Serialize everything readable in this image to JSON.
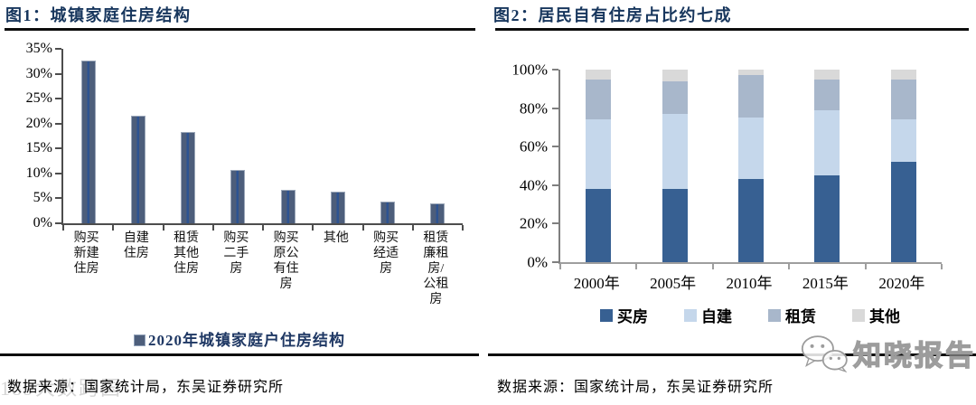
{
  "figure1": {
    "title": "图1：城镇家庭住房结构",
    "legend": "2020年城镇家庭户住房结构",
    "source": "数据来源：国家统计局，东吴证券研究所",
    "watermark": "189大数跨国"
  },
  "figure2": {
    "title": "图2：居民自有住房占比约七成",
    "source": "数据来源：国家统计局，东吴证券研究所",
    "watermark": "知晓报告"
  },
  "chart_data": [
    {
      "type": "bar",
      "title": "图1：城镇家庭住房结构",
      "categories": [
        "购买新建住房",
        "自建住房",
        "租赁其他住房",
        "购买二手房",
        "购买原公有住房",
        "其他",
        "购买经适房",
        "租赁廉租房/公租房"
      ],
      "values": [
        32.6,
        21.6,
        18.3,
        10.7,
        6.7,
        6.4,
        4.4,
        4.0
      ],
      "ylim": [
        0,
        35
      ],
      "yticks": [
        "0%",
        "5%",
        "10%",
        "15%",
        "20%",
        "25%",
        "30%",
        "35%"
      ],
      "legend": "2020年城镇家庭户住房结构",
      "legend_position": "bottom",
      "grid": false,
      "colors": {
        "bar": "#4d5e7b",
        "stripe": "#2d5391",
        "border": "#9aa6b8"
      }
    },
    {
      "type": "bar",
      "stacked": true,
      "title": "图2：居民自有住房占比约七成",
      "categories": [
        "2000年",
        "2005年",
        "2010年",
        "2015年",
        "2020年"
      ],
      "series": [
        {
          "name": "买房",
          "color": "#376092",
          "values": [
            38,
            38,
            43,
            45,
            52
          ]
        },
        {
          "name": "自建",
          "color": "#c5d7eb",
          "values": [
            36,
            39,
            32,
            34,
            22
          ]
        },
        {
          "name": "租赁",
          "color": "#a8b7cb",
          "values": [
            21,
            17,
            22,
            16,
            21
          ]
        },
        {
          "name": "其他",
          "color": "#d9d9d9",
          "values": [
            5,
            6,
            3,
            5,
            5
          ]
        }
      ],
      "ylim": [
        0,
        100
      ],
      "yticks": [
        "0%",
        "20%",
        "40%",
        "60%",
        "80%",
        "100%"
      ],
      "legend_position": "bottom",
      "grid": false
    }
  ]
}
